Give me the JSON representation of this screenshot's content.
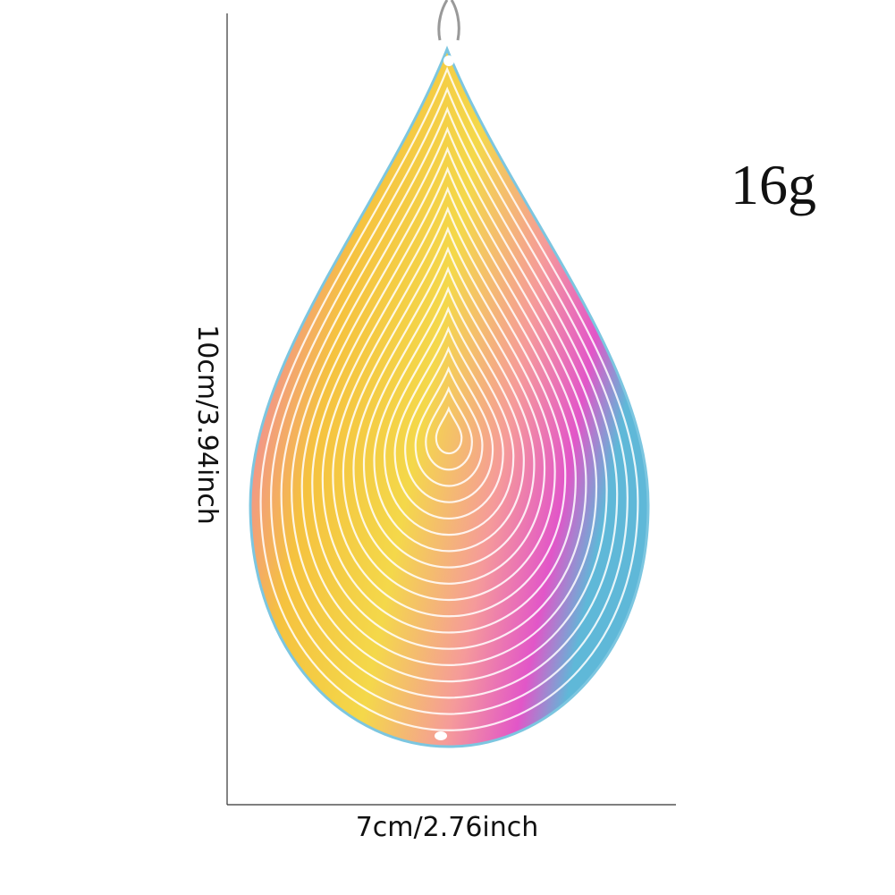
{
  "weight_label": "16g",
  "height_label": "10cm/3.94inch",
  "width_label": "7cm/2.76inch"
}
